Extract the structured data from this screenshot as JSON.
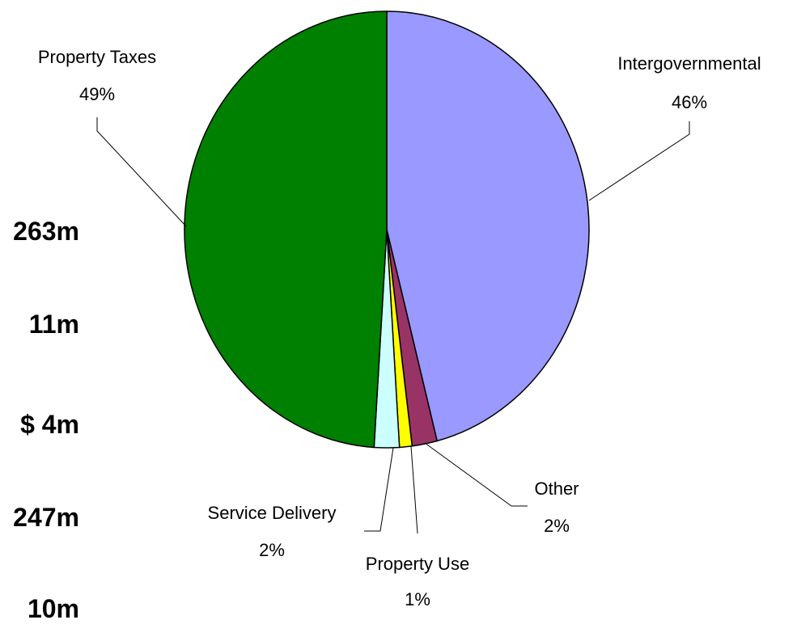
{
  "chart_data": {
    "type": "pie",
    "title": "",
    "slices": [
      {
        "label": "Intergovernmental",
        "value": 46,
        "pct_label": "46%",
        "color": "#9999ff"
      },
      {
        "label": "Other",
        "value": 2,
        "pct_label": "2%",
        "color": "#993366"
      },
      {
        "label": "Property Use",
        "value": 1,
        "pct_label": "1%",
        "color": "#ffff00"
      },
      {
        "label": "Service Delivery",
        "value": 2,
        "pct_label": "2%",
        "color": "#ccffff"
      },
      {
        "label": "Property Taxes",
        "value": 49,
        "pct_label": "49%",
        "color": "#008000"
      }
    ]
  },
  "side_amounts": [
    "263m",
    "11m",
    "$ 4m",
    "247m",
    "10m"
  ]
}
